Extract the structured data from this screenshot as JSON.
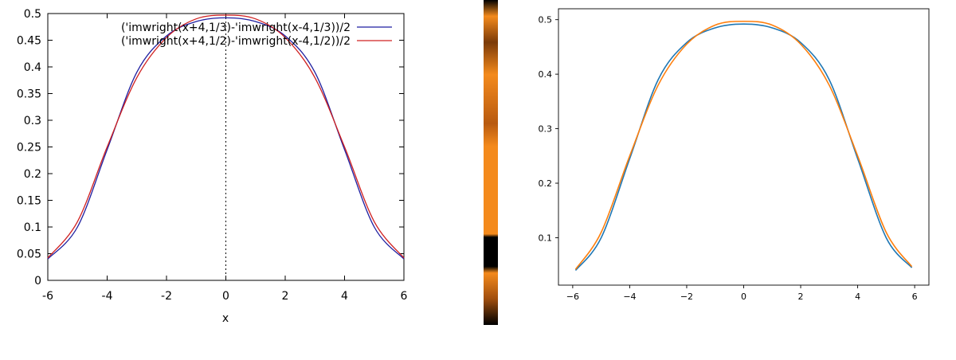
{
  "chart_data": [
    {
      "type": "line",
      "xlabel": "x",
      "ylabel": "",
      "xlim": [
        -6,
        6
      ],
      "ylim": [
        0,
        0.5
      ],
      "xticks": [
        "-6",
        "-4",
        "-2",
        "0",
        "2",
        "4",
        "6"
      ],
      "yticks": [
        "0",
        "0.05",
        "0.1",
        "0.15",
        "0.2",
        "0.25",
        "0.3",
        "0.35",
        "0.4",
        "0.45",
        "0.5"
      ],
      "grid": false,
      "legend": "top-right",
      "vertical_reference_x": 0,
      "series": [
        {
          "name": "('imwright(x+4,1/3)-'imwright(x-4,1/3))/2",
          "color": "#1f1fa0",
          "x": [
            -6,
            -5,
            -4,
            -3,
            -2,
            -1,
            0,
            1,
            2,
            3,
            4,
            5,
            6
          ],
          "y": [
            0.04,
            0.1,
            0.245,
            0.39,
            0.458,
            0.485,
            0.492,
            0.485,
            0.458,
            0.39,
            0.245,
            0.1,
            0.04
          ]
        },
        {
          "name": "('imwright(x+4,1/2)-'imwright(x-4,1/2))/2",
          "color": "#d02020",
          "x": [
            -6,
            -5,
            -4,
            -3,
            -2,
            -1,
            0,
            1,
            2,
            3,
            4,
            5,
            6
          ],
          "y": [
            0.042,
            0.11,
            0.25,
            0.38,
            0.455,
            0.49,
            0.497,
            0.49,
            0.455,
            0.38,
            0.25,
            0.11,
            0.042
          ]
        }
      ]
    },
    {
      "type": "line",
      "xlim": [
        -6.5,
        6.5
      ],
      "ylim": [
        0.013,
        0.52
      ],
      "xticks": [
        "−6",
        "−4",
        "−2",
        "0",
        "2",
        "4",
        "6"
      ],
      "yticks": [
        "0.1",
        "0.2",
        "0.3",
        "0.4",
        "0.5"
      ],
      "grid": false,
      "series": [
        {
          "color": "#1f77b4",
          "x": [
            -5.9,
            -5,
            -4,
            -3,
            -2,
            -1,
            0,
            1,
            2,
            3,
            4,
            5,
            5.9
          ],
          "y": [
            0.04,
            0.1,
            0.245,
            0.39,
            0.458,
            0.485,
            0.492,
            0.485,
            0.458,
            0.39,
            0.245,
            0.1,
            0.045
          ]
        },
        {
          "color": "#ff7f0e",
          "x": [
            -5.9,
            -5,
            -4,
            -3,
            -2,
            -1,
            0,
            1,
            2,
            3,
            4,
            5,
            5.9
          ],
          "y": [
            0.042,
            0.11,
            0.25,
            0.38,
            0.455,
            0.49,
            0.497,
            0.49,
            0.455,
            0.38,
            0.25,
            0.11,
            0.047
          ]
        }
      ]
    }
  ],
  "divider": {
    "colors": [
      "#f48a1c",
      "#7b3a08",
      "#000000"
    ]
  }
}
